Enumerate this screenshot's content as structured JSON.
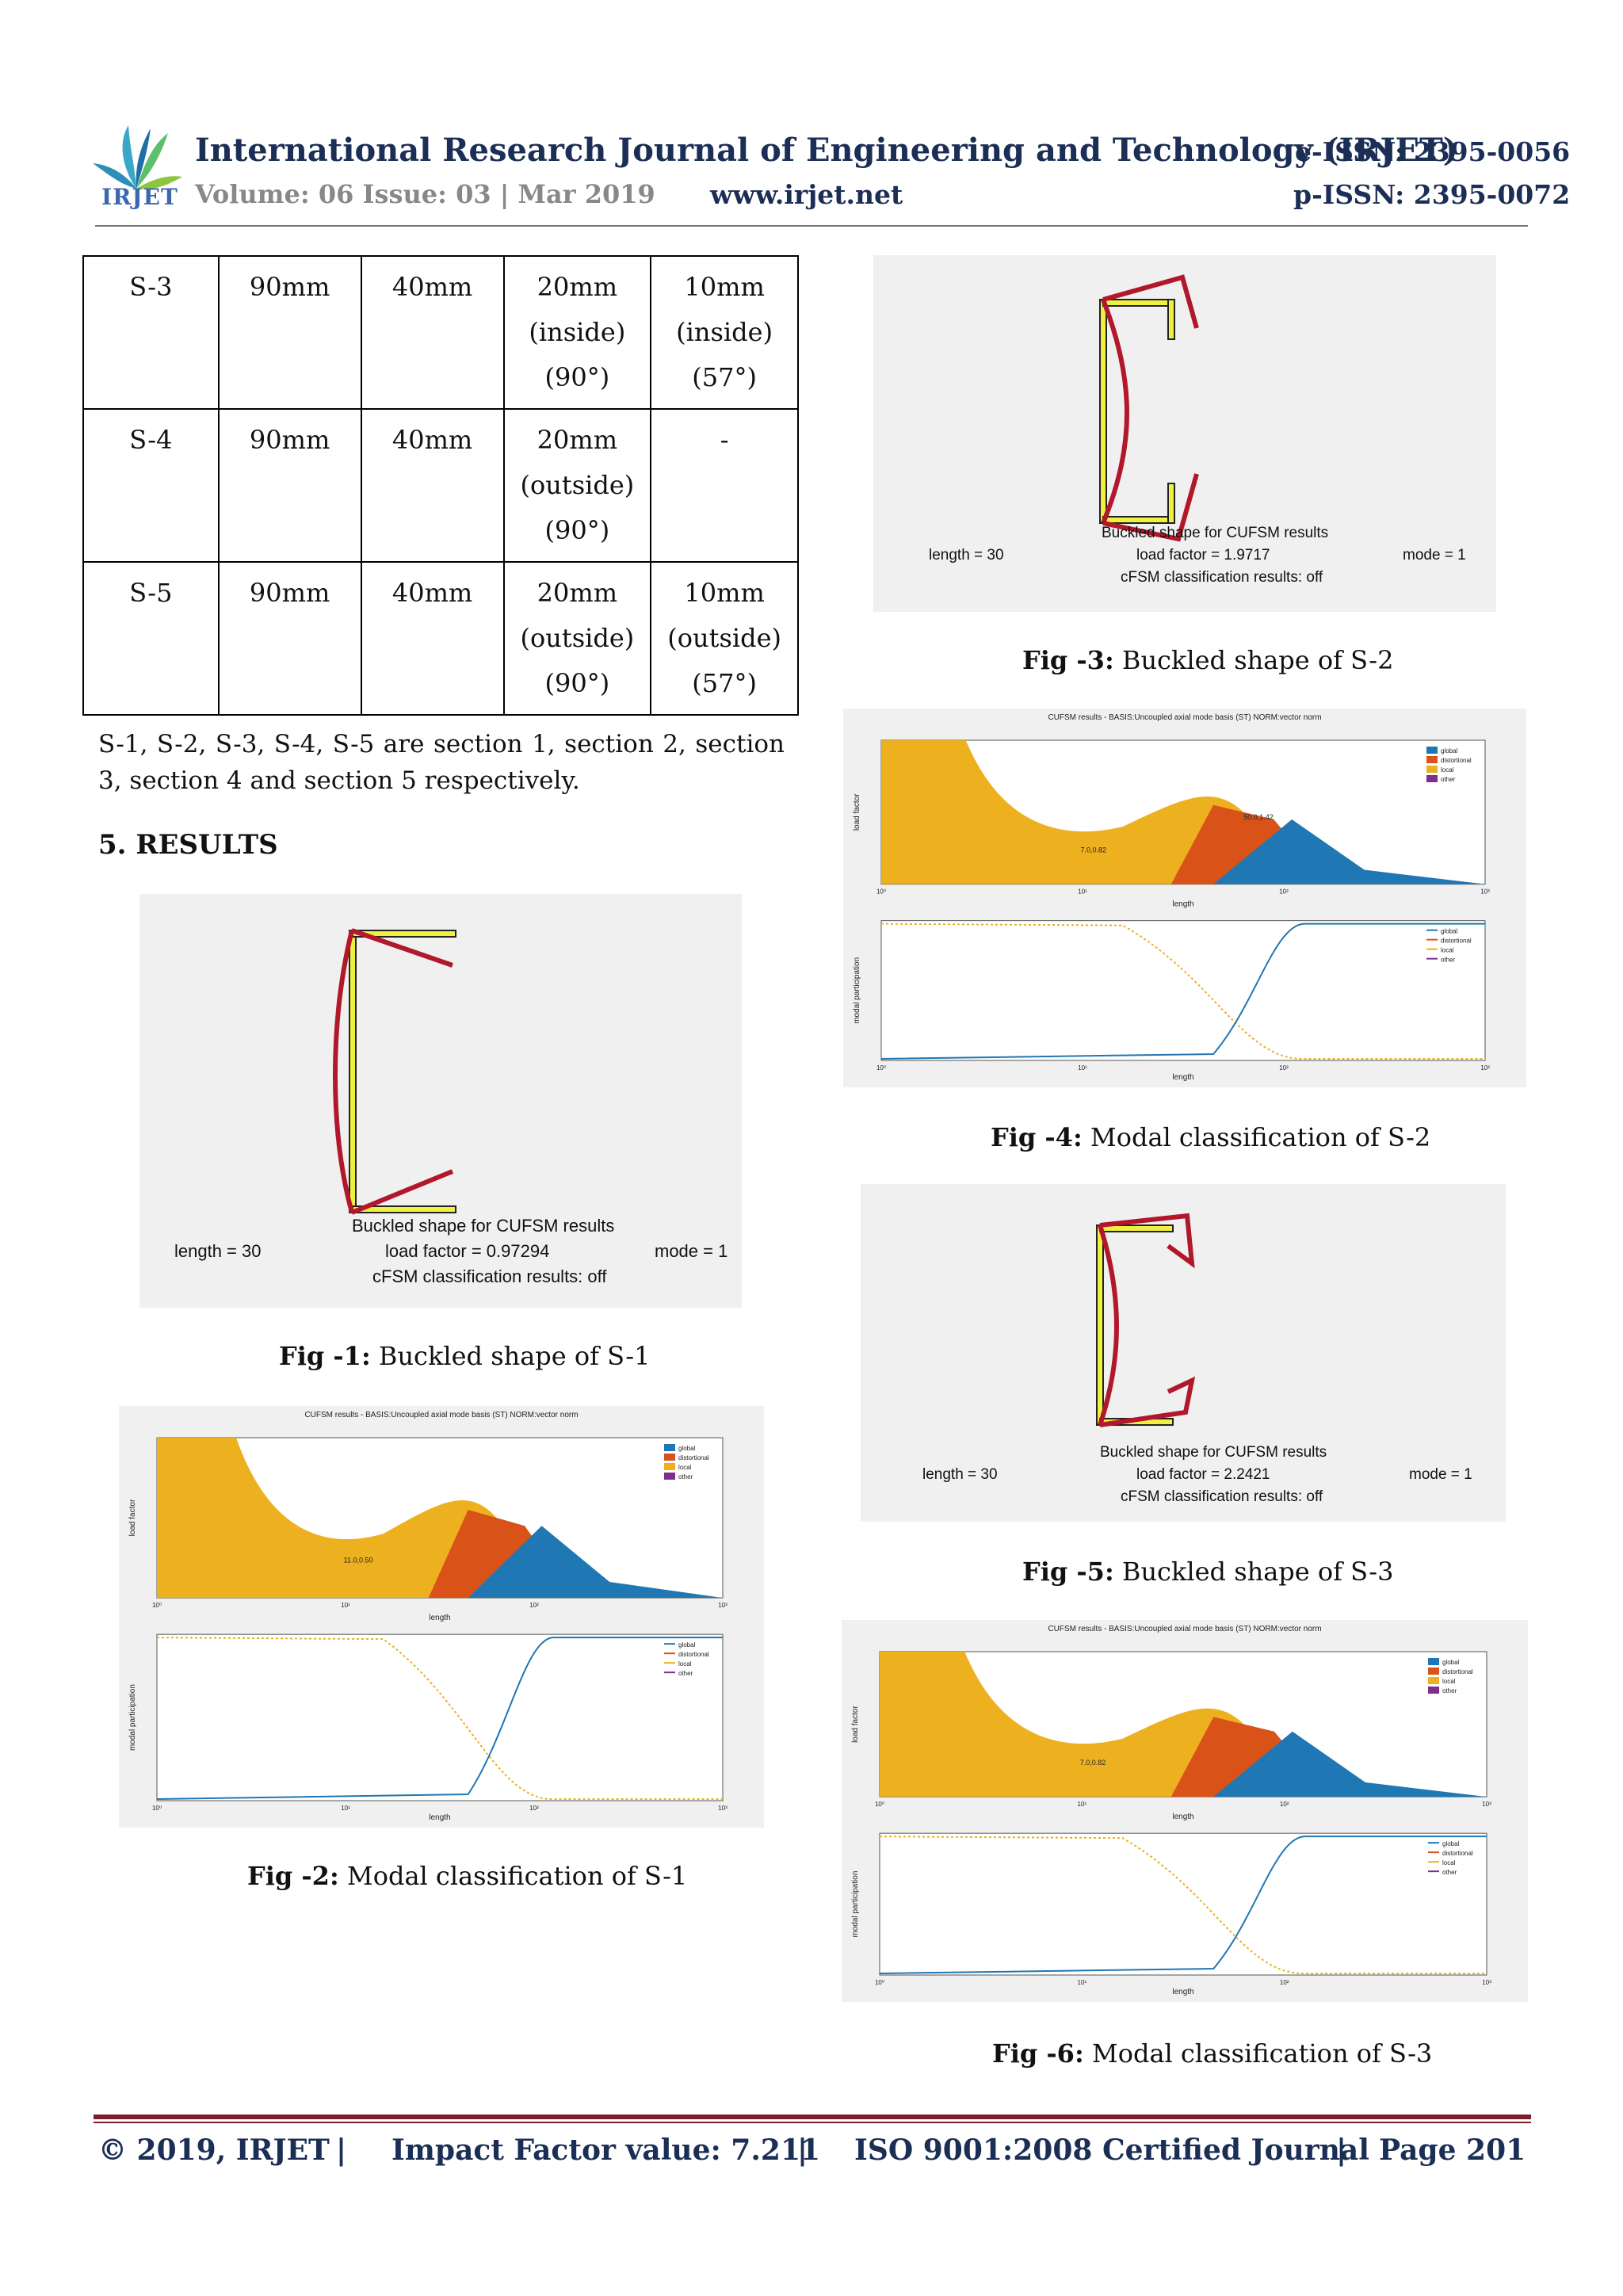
{
  "header": {
    "journal_title": "International Research Journal of Engineering and Technology (IRJET)",
    "eissn": "e-ISSN: 2395-0056",
    "volume": "Volume: 06 Issue: 03 | Mar 2019",
    "website": "www.irjet.net",
    "pissn": "p-ISSN: 2395-0072",
    "logo_text": "IRJET"
  },
  "table": {
    "rows": [
      {
        "cells": [
          "S-3",
          "90mm",
          "40mm",
          "20mm\n(inside)\n(90°)",
          "10mm\n(inside)\n(57°)"
        ]
      },
      {
        "cells": [
          "S-4",
          "90mm",
          "40mm",
          "20mm\n(outside)\n(90°)",
          "-"
        ]
      },
      {
        "cells": [
          "S-5",
          "90mm",
          "40mm",
          "20mm\n(outside)\n(90°)",
          "10mm\n(outside)\n(57°)"
        ]
      }
    ]
  },
  "body": {
    "paragraph": "S-1, S-2, S-3, S-4, S-5 are section 1, section 2, section 3, section 4 and section 5 respectively.",
    "heading": "5. RESULTS"
  },
  "figures": {
    "fig1": {
      "label": "Fig -1:",
      "caption": " Buckled shape of S-1",
      "length": "length = 30",
      "title": "Buckled shape for  CUFSM results",
      "load_factor": "load factor = 0.97294",
      "cfsm": "cFSM classification results: off",
      "mode": "mode = 1"
    },
    "fig2": {
      "label": "Fig -2:",
      "caption": " Modal classification of S-1",
      "header": "CUFSM results -  BASIS:Uncoupled axial mode basis (ST)  NORM:vector norm",
      "point_label": "11.0,0.50"
    },
    "fig3": {
      "label": "Fig -3:",
      "caption": " Buckled shape of S-2",
      "length": "length = 30",
      "title": "Buckled shape for  CUFSM results",
      "load_factor": "load factor =  1.9717",
      "cfsm": "cFSM classification results: off",
      "mode": "mode = 1"
    },
    "fig4": {
      "label": "Fig -4:",
      "caption": " Modal classification of S-2",
      "header": "CUFSM results -  BASIS:Uncoupled axial mode basis (ST)  NORM:vector norm",
      "point_label": "7.0,0.82",
      "point_label2": "50.0,1.42"
    },
    "fig5": {
      "label": "Fig -5:",
      "caption": " Buckled shape of S-3",
      "length": "length = 30",
      "title": "Buckled shape for  CUFSM results",
      "load_factor": "load factor = 2.2421",
      "cfsm": "cFSM classification results: off",
      "mode": "mode = 1"
    },
    "fig6": {
      "label": "Fig -6:",
      "caption": " Modal classification of S-3",
      "header": "CUFSM results -  BASIS:Uncoupled axial mode basis (ST)  NORM:vector norm",
      "point_label": "7.0,0.82"
    }
  },
  "chart_labels": {
    "ylabel_top": "load factor",
    "ylabel_bottom": "modal participation",
    "xlabel": "length",
    "legend": [
      "global",
      "distortional",
      "local",
      "other"
    ],
    "x_ticks": [
      "10⁰",
      "10¹",
      "10²",
      "10³"
    ]
  },
  "footer": {
    "copyright": "© 2019, IRJET",
    "sep": "|",
    "impact": "Impact Factor value: 7.211",
    "iso": "ISO 9001:2008 Certified Journal",
    "page": "Page 201"
  },
  "colors": {
    "global": "#1f77b4",
    "distortional": "#d95319",
    "local": "#edb120",
    "other": "#7e2f8e",
    "member": "#b2182b",
    "node_fill": "#f0f040"
  }
}
